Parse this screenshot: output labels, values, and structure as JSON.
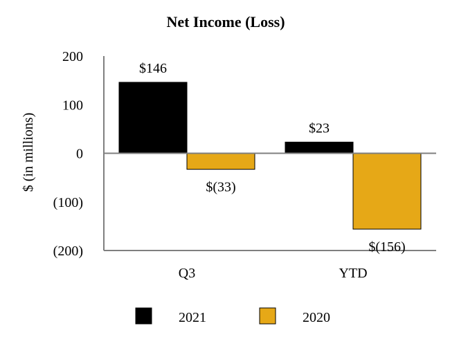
{
  "chart_data": {
    "type": "bar",
    "title": "Net Income (Loss)",
    "xlabel": "",
    "ylabel": "$ (in millions)",
    "categories": [
      "Q3",
      "YTD"
    ],
    "ylim": [
      -200,
      200
    ],
    "yticks": [
      200,
      100,
      0,
      -100,
      -200
    ],
    "ytick_labels": [
      "200",
      "100",
      "0",
      "(100)",
      "(200)"
    ],
    "grid": false,
    "legend_position": "bottom",
    "series": [
      {
        "name": "2021",
        "color": "#000000",
        "values": [
          146,
          23
        ],
        "labels": [
          "$146",
          "$23"
        ]
      },
      {
        "name": "2020",
        "color": "#E6A817",
        "values": [
          -33,
          -156
        ],
        "labels": [
          "$(33)",
          "$(156)"
        ]
      }
    ]
  }
}
